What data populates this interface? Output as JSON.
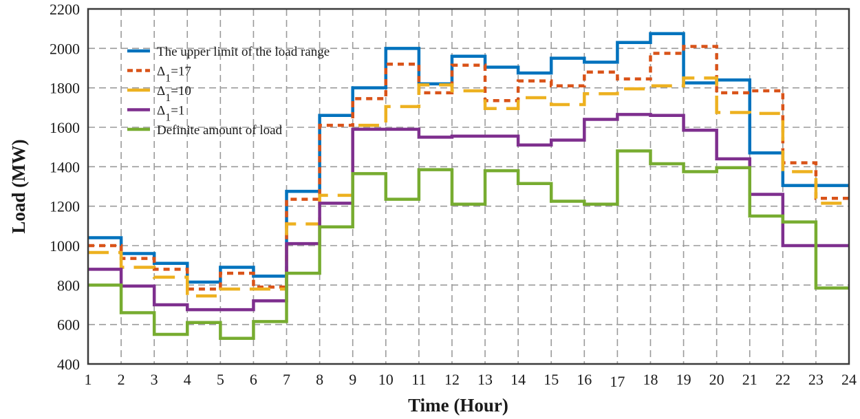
{
  "chart_data": {
    "type": "line",
    "step": "post",
    "title": "",
    "xlabel": "Time (Hour)",
    "ylabel": "Load (MW)",
    "xlim": [
      1,
      24
    ],
    "ylim": [
      400,
      2200
    ],
    "x_ticks": [
      1,
      2,
      3,
      4,
      5,
      6,
      7,
      8,
      9,
      10,
      11,
      12,
      13,
      14,
      15,
      16,
      17,
      18,
      19,
      20,
      21,
      22,
      23,
      24
    ],
    "y_ticks": [
      400,
      600,
      800,
      1000,
      1200,
      1400,
      1600,
      1800,
      2000,
      2200
    ],
    "grid": true,
    "legend_position": "upper left",
    "x": [
      1,
      2,
      3,
      4,
      5,
      6,
      7,
      8,
      9,
      10,
      11,
      12,
      13,
      14,
      15,
      16,
      17,
      18,
      19,
      20,
      21,
      22,
      23
    ],
    "series": [
      {
        "name": "The upper limit of the load range",
        "color": "#0072BD",
        "style": "solid",
        "values": [
          1040,
          960,
          910,
          815,
          890,
          845,
          1275,
          1660,
          1800,
          2000,
          1820,
          1960,
          1905,
          1875,
          1950,
          1930,
          2030,
          2075,
          1825,
          1840,
          1470,
          1305,
          1305
        ]
      },
      {
        "name": "Δ1=17",
        "color": "#D95319",
        "style": "dotted",
        "values": [
          1000,
          935,
          880,
          780,
          860,
          790,
          1235,
          1610,
          1745,
          1920,
          1775,
          1915,
          1735,
          1835,
          1810,
          1880,
          1845,
          1975,
          2010,
          1775,
          1785,
          1420,
          1240
        ]
      },
      {
        "name": "Δ1=10",
        "color": "#EDB120",
        "style": "dashed",
        "values": [
          965,
          890,
          840,
          745,
          780,
          780,
          1110,
          1255,
          1610,
          1705,
          1815,
          1785,
          1695,
          1750,
          1715,
          1770,
          1795,
          1810,
          1850,
          1675,
          1670,
          1375,
          1215
        ]
      },
      {
        "name": "Δ1=1",
        "color": "#7E2F8E",
        "style": "solid",
        "values": [
          880,
          795,
          700,
          675,
          675,
          720,
          1010,
          1215,
          1590,
          1590,
          1550,
          1555,
          1555,
          1510,
          1535,
          1640,
          1665,
          1660,
          1585,
          1440,
          1260,
          1000,
          1000
        ]
      },
      {
        "name": "Definite amount of load",
        "color": "#77AC30",
        "style": "solid",
        "values": [
          800,
          660,
          550,
          610,
          530,
          615,
          860,
          1095,
          1365,
          1235,
          1385,
          1210,
          1380,
          1315,
          1225,
          1210,
          1480,
          1415,
          1375,
          1395,
          1150,
          1120,
          785
        ]
      }
    ]
  },
  "legend": {
    "items": [
      {
        "label": "The upper limit of the load range",
        "sub": ""
      },
      {
        "label": "Δ",
        "sub": "1",
        "suffix": "=17"
      },
      {
        "label": "Δ",
        "sub": "1",
        "suffix": "=10"
      },
      {
        "label": "Δ",
        "sub": "1",
        "suffix": "=1"
      },
      {
        "label": "Definite amount of load",
        "sub": ""
      }
    ]
  },
  "axes": {
    "xlabel": "Time (Hour)",
    "ylabel": "Load (MW)"
  }
}
